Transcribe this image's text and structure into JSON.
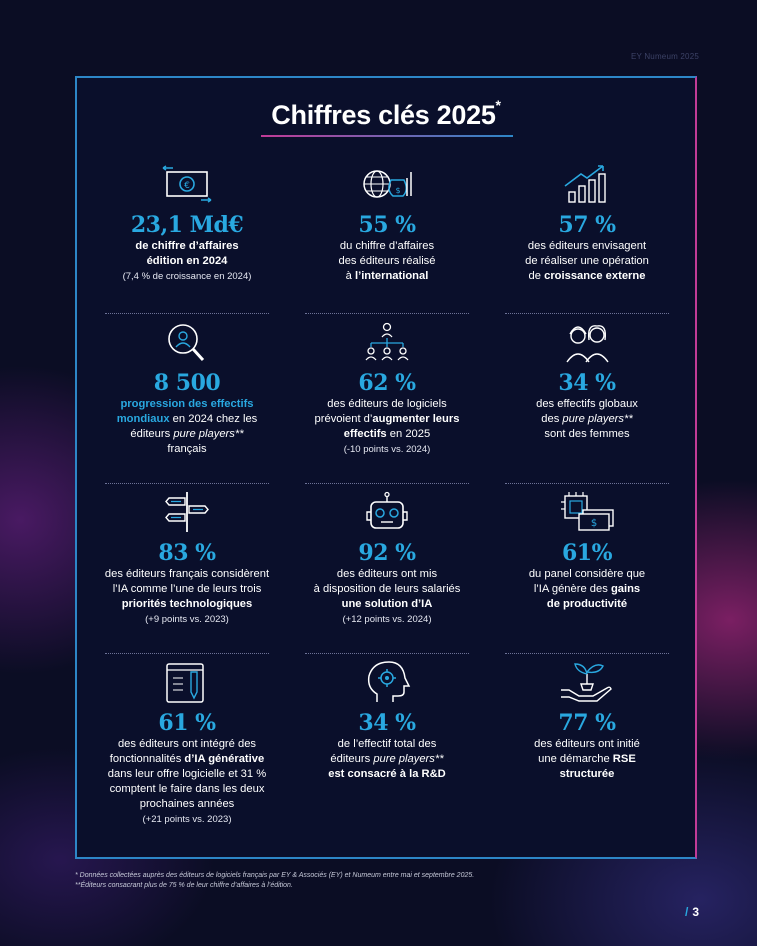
{
  "header": {
    "tag": "EY Numeum 2025"
  },
  "title": {
    "text": "Chiffres clés 2025",
    "mark": "*"
  },
  "stats": [
    {
      "icon": "money-transfer-icon",
      "value": "23,1 Md€",
      "lines": [
        [
          {
            "t": "de chiffre d’affaires",
            "s": "b"
          }
        ],
        [
          {
            "t": "édition en 2024",
            "s": "b"
          }
        ],
        [
          {
            "t": "(7,4 % de croissance en 2024)",
            "s": "sm"
          }
        ]
      ]
    },
    {
      "icon": "globe-money-bag-icon",
      "value": "55 %",
      "lines": [
        [
          {
            "t": "du chiffre d’affaires",
            "s": ""
          }
        ],
        [
          {
            "t": "des éditeurs réalisé",
            "s": ""
          }
        ],
        [
          {
            "t": "à ",
            "s": ""
          },
          {
            "t": "l’international",
            "s": "b"
          }
        ]
      ]
    },
    {
      "icon": "growth-chart-icon",
      "value": "57 %",
      "lines": [
        [
          {
            "t": "des éditeurs envisagent",
            "s": ""
          }
        ],
        [
          {
            "t": "de réaliser une opération",
            "s": ""
          }
        ],
        [
          {
            "t": "de ",
            "s": ""
          },
          {
            "t": "croissance externe",
            "s": "b"
          }
        ]
      ]
    },
    {
      "icon": "magnifier-person-icon",
      "value": "8 500",
      "lines": [
        [
          {
            "t": "progression des effectifs",
            "s": "bl"
          }
        ],
        [
          {
            "t": "mondiaux",
            "s": "bl"
          },
          {
            "t": " en 2024 chez les",
            "s": ""
          }
        ],
        [
          {
            "t": "éditeurs ",
            "s": ""
          },
          {
            "t": "pure players**",
            "s": "it"
          }
        ],
        [
          {
            "t": "français",
            "s": ""
          }
        ]
      ]
    },
    {
      "icon": "org-chart-icon",
      "value": "62 %",
      "lines": [
        [
          {
            "t": "des éditeurs de logiciels",
            "s": ""
          }
        ],
        [
          {
            "t": "prévoient d’",
            "s": ""
          },
          {
            "t": "augmenter leurs",
            "s": "b"
          }
        ],
        [
          {
            "t": "effectifs",
            "s": "b"
          },
          {
            "t": " en 2025",
            "s": ""
          }
        ],
        [
          {
            "t": "(-10 points vs. 2024)",
            "s": "sm"
          }
        ]
      ]
    },
    {
      "icon": "women-icon",
      "value": "34 %",
      "lines": [
        [
          {
            "t": "des effectifs globaux",
            "s": ""
          }
        ],
        [
          {
            "t": "des ",
            "s": ""
          },
          {
            "t": "pure players**",
            "s": "it"
          }
        ],
        [
          {
            "t": "sont des femmes",
            "s": ""
          }
        ]
      ]
    },
    {
      "icon": "signpost-icon",
      "value": "83 %",
      "lines": [
        [
          {
            "t": "des éditeurs français considèrent",
            "s": ""
          }
        ],
        [
          {
            "t": "l’IA comme l’une de leurs trois",
            "s": ""
          }
        ],
        [
          {
            "t": "priorités technologiques",
            "s": "b"
          }
        ],
        [
          {
            "t": "(+9 points vs. 2023)",
            "s": "sm"
          }
        ]
      ]
    },
    {
      "icon": "robot-icon",
      "value": "92 %",
      "lines": [
        [
          {
            "t": "des éditeurs ont mis",
            "s": ""
          }
        ],
        [
          {
            "t": "à disposition de leurs salariés",
            "s": ""
          }
        ],
        [
          {
            "t": "une solution d’IA",
            "s": "b"
          }
        ],
        [
          {
            "t": "(+12 points vs. 2024)",
            "s": "sm"
          }
        ]
      ]
    },
    {
      "icon": "chip-cash-icon",
      "value": "61%",
      "lines": [
        [
          {
            "t": "du panel considère que",
            "s": ""
          }
        ],
        [
          {
            "t": "l’IA génère des ",
            "s": ""
          },
          {
            "t": "gains",
            "s": "b"
          }
        ],
        [
          {
            "t": "de productivité",
            "s": "b"
          }
        ]
      ]
    },
    {
      "icon": "tablet-pencil-icon",
      "value": "61 %",
      "lines": [
        [
          {
            "t": "des éditeurs ont intégré des",
            "s": ""
          }
        ],
        [
          {
            "t": "fonctionnalités ",
            "s": ""
          },
          {
            "t": "d’IA générative",
            "s": "b"
          }
        ],
        [
          {
            "t": "dans leur offre logicielle et 31 %",
            "s": ""
          }
        ],
        [
          {
            "t": "comptent le faire dans les deux",
            "s": ""
          }
        ],
        [
          {
            "t": "prochaines années",
            "s": ""
          }
        ],
        [
          {
            "t": "(+21 points vs. 2023)",
            "s": "sm"
          }
        ]
      ]
    },
    {
      "icon": "head-gear-icon",
      "value": "34 %",
      "lines": [
        [
          {
            "t": "de l’effectif total des",
            "s": ""
          }
        ],
        [
          {
            "t": "éditeurs ",
            "s": ""
          },
          {
            "t": "pure players**",
            "s": "it"
          }
        ],
        [
          {
            "t": "est consacré à la R&D",
            "s": "b"
          }
        ]
      ]
    },
    {
      "icon": "hand-plant-icon",
      "value": "77 %",
      "lines": [
        [
          {
            "t": "des éditeurs ont initié",
            "s": ""
          }
        ],
        [
          {
            "t": "une démarche ",
            "s": ""
          },
          {
            "t": "RSE",
            "s": "b"
          }
        ],
        [
          {
            "t": "structurée",
            "s": "b"
          }
        ]
      ]
    }
  ],
  "footnotes": [
    "*  Données collectées auprès des éditeurs de logiciels français par EY & Associés (EY) et Numeum entre mai et septembre 2025.",
    "**Éditeurs consacrant plus de 75 % de leur chiffre d’affaires à l’édition."
  ],
  "page": {
    "slash": "/",
    "number": "3"
  },
  "colors": {
    "accent": "#29a8e0",
    "pink": "#c13b97",
    "frame_blue": "#2d86c7",
    "bg": "#0a0f2b"
  }
}
